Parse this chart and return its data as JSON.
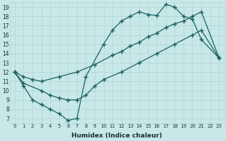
{
  "xlabel": "Humidex (Indice chaleur)",
  "bg_color": "#c8e8e8",
  "line_color": "#1a6060",
  "xlim": [
    -0.5,
    23.5
  ],
  "ylim": [
    6.5,
    19.5
  ],
  "xticks": [
    0,
    1,
    2,
    3,
    4,
    5,
    6,
    7,
    8,
    9,
    10,
    11,
    12,
    13,
    14,
    15,
    16,
    17,
    18,
    19,
    20,
    21,
    22,
    23
  ],
  "yticks": [
    7,
    8,
    9,
    10,
    11,
    12,
    13,
    14,
    15,
    16,
    17,
    18,
    19
  ],
  "curve1_x": [
    0,
    1,
    2,
    3,
    4,
    5,
    6,
    7,
    8,
    10,
    11,
    12,
    13,
    14,
    15,
    16,
    17,
    18,
    19,
    20,
    21,
    23
  ],
  "curve1_y": [
    12,
    10.5,
    9.0,
    8.5,
    8.0,
    7.5,
    6.8,
    7.0,
    11.5,
    15.0,
    16.5,
    17.5,
    18.0,
    18.5,
    18.2,
    18.1,
    19.3,
    19.0,
    18.0,
    17.7,
    15.5,
    13.5
  ],
  "curve2_x": [
    0,
    1,
    2,
    3,
    5,
    7,
    9,
    11,
    12,
    13,
    14,
    15,
    16,
    17,
    18,
    19,
    20,
    21,
    23
  ],
  "curve2_y": [
    12,
    11.5,
    11.2,
    11.0,
    11.5,
    12.0,
    12.8,
    13.8,
    14.2,
    14.8,
    15.2,
    15.8,
    16.2,
    16.8,
    17.2,
    17.5,
    18.0,
    18.5,
    13.5
  ],
  "curve3_x": [
    0,
    1,
    3,
    4,
    5,
    6,
    7,
    8,
    9,
    10,
    12,
    14,
    16,
    18,
    20,
    21,
    23
  ],
  "curve3_y": [
    12,
    10.8,
    10.0,
    9.5,
    9.2,
    9.0,
    9.0,
    9.5,
    10.5,
    11.2,
    12.0,
    13.0,
    14.0,
    15.0,
    16.0,
    16.5,
    13.5
  ],
  "grid_color": "#aed4d4",
  "marker": "+",
  "markersize": 5,
  "linewidth": 0.9
}
